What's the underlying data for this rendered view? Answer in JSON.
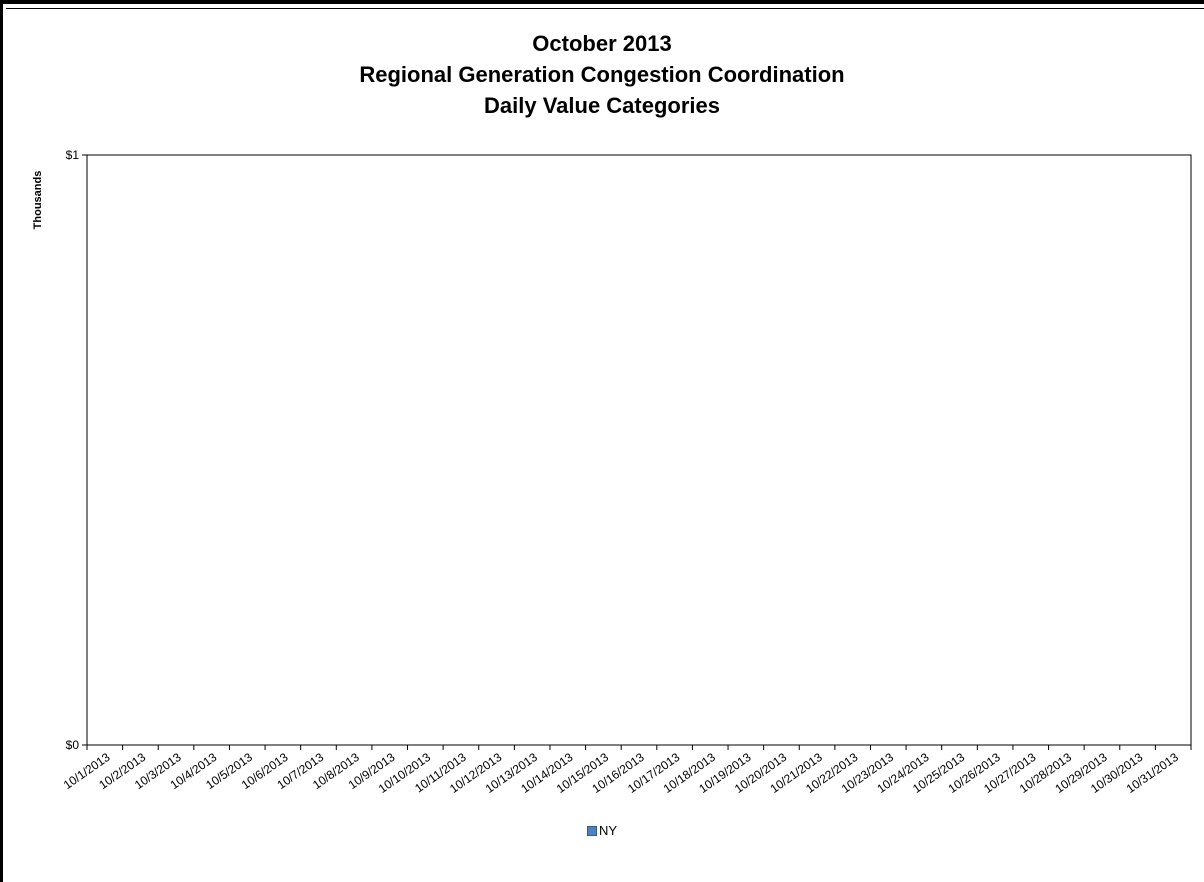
{
  "chart_data": {
    "type": "bar",
    "title": [
      "October 2013",
      "Regional Generation Congestion Coordination",
      "Daily Value Categories"
    ],
    "ylabel": "Thousands",
    "y_ticks": [
      "$1",
      "$0"
    ],
    "ylim": [
      0,
      1
    ],
    "categories": [
      "10/1/2013",
      "10/2/2013",
      "10/3/2013",
      "10/4/2013",
      "10/5/2013",
      "10/6/2013",
      "10/7/2013",
      "10/8/2013",
      "10/9/2013",
      "10/10/2013",
      "10/11/2013",
      "10/12/2013",
      "10/13/2013",
      "10/14/2013",
      "10/15/2013",
      "10/16/2013",
      "10/17/2013",
      "10/18/2013",
      "10/19/2013",
      "10/20/2013",
      "10/21/2013",
      "10/22/2013",
      "10/23/2013",
      "10/24/2013",
      "10/25/2013",
      "10/26/2013",
      "10/27/2013",
      "10/28/2013",
      "10/29/2013",
      "10/30/2013",
      "10/31/2013"
    ],
    "series": [
      {
        "name": "NY",
        "color": "#4f81bd",
        "values": [
          0,
          0,
          0,
          0,
          0,
          0,
          0,
          0,
          0,
          0,
          0,
          0,
          0,
          0,
          0,
          0,
          0,
          0,
          0,
          0,
          0,
          0,
          0,
          0,
          0,
          0,
          0,
          0,
          0,
          0,
          0
        ]
      }
    ],
    "grid": false,
    "legend_position": "bottom"
  }
}
